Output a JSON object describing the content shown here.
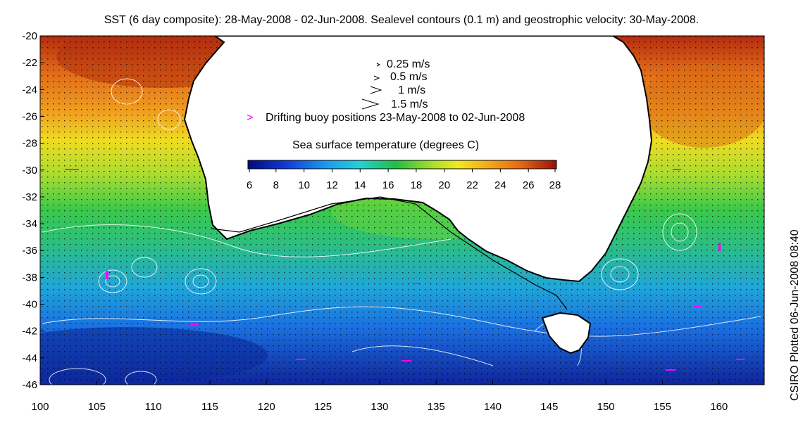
{
  "title": "SST (6 day composite): 28-May-2008 - 02-Jun-2008. Sealevel contours (0.1 m) and geostrophic velocity: 30-May-2008.",
  "credit": "CSIRO Plotted 06-Jun-2008 08:40",
  "axes": {
    "x": {
      "ticks": [
        "100",
        "105",
        "110",
        "115",
        "120",
        "125",
        "130",
        "135",
        "140",
        "145",
        "150",
        "155",
        "160"
      ]
    },
    "y": {
      "ticks": [
        "-20",
        "-22",
        "-24",
        "-26",
        "-28",
        "-30",
        "-32",
        "-34",
        "-36",
        "-38",
        "-40",
        "-42",
        "-44",
        "-46"
      ]
    }
  },
  "legend": {
    "velocity": [
      "0.25 m/s",
      "0.5 m/s",
      "1 m/s",
      "1.5 m/s"
    ],
    "buoy_marker": ">",
    "buoy": "Drifting buoy positions 23-May-2008 to 02-Jun-2008",
    "colorbar_title": "Sea surface temperature (degrees C)",
    "colorbar_ticks": [
      "6",
      "8",
      "10",
      "12",
      "14",
      "16",
      "18",
      "20",
      "22",
      "24",
      "26",
      "28"
    ]
  },
  "colors": {
    "cold": "#0a1a8a",
    "cool": "#1ea0e6",
    "mid": "#22c35a",
    "warm": "#f2e020",
    "hot": "#e07818",
    "hottest": "#a41c0a",
    "land": "#ffffff",
    "contour": "#ffffff",
    "buoy": "#ff00ff",
    "coast": "#000000"
  },
  "chart_data": {
    "type": "heatmap",
    "variable": "sea surface temperature (degrees C)",
    "xlim": [
      100,
      164
    ],
    "ylim": [
      -46,
      -20
    ],
    "colorbar_range": [
      6,
      28
    ]
  }
}
